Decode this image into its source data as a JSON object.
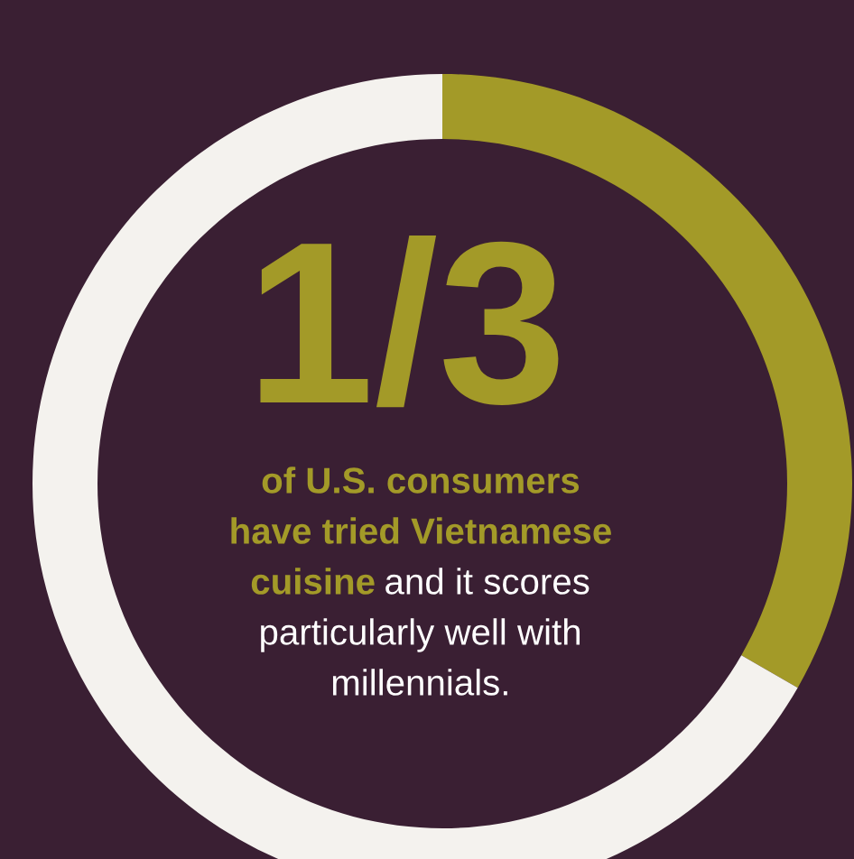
{
  "chart_data": {
    "type": "donut",
    "categories": [
      null,
      null
    ],
    "values": [
      33.3,
      66.7
    ],
    "colors": [
      "#a39a28",
      "#f4f2ee"
    ],
    "annotations": [
      "1/3",
      "of U.S. consumers",
      "have tried Vietnamese",
      "cuisine",
      "and it scores",
      "particularly well with",
      "millennials."
    ]
  }
}
